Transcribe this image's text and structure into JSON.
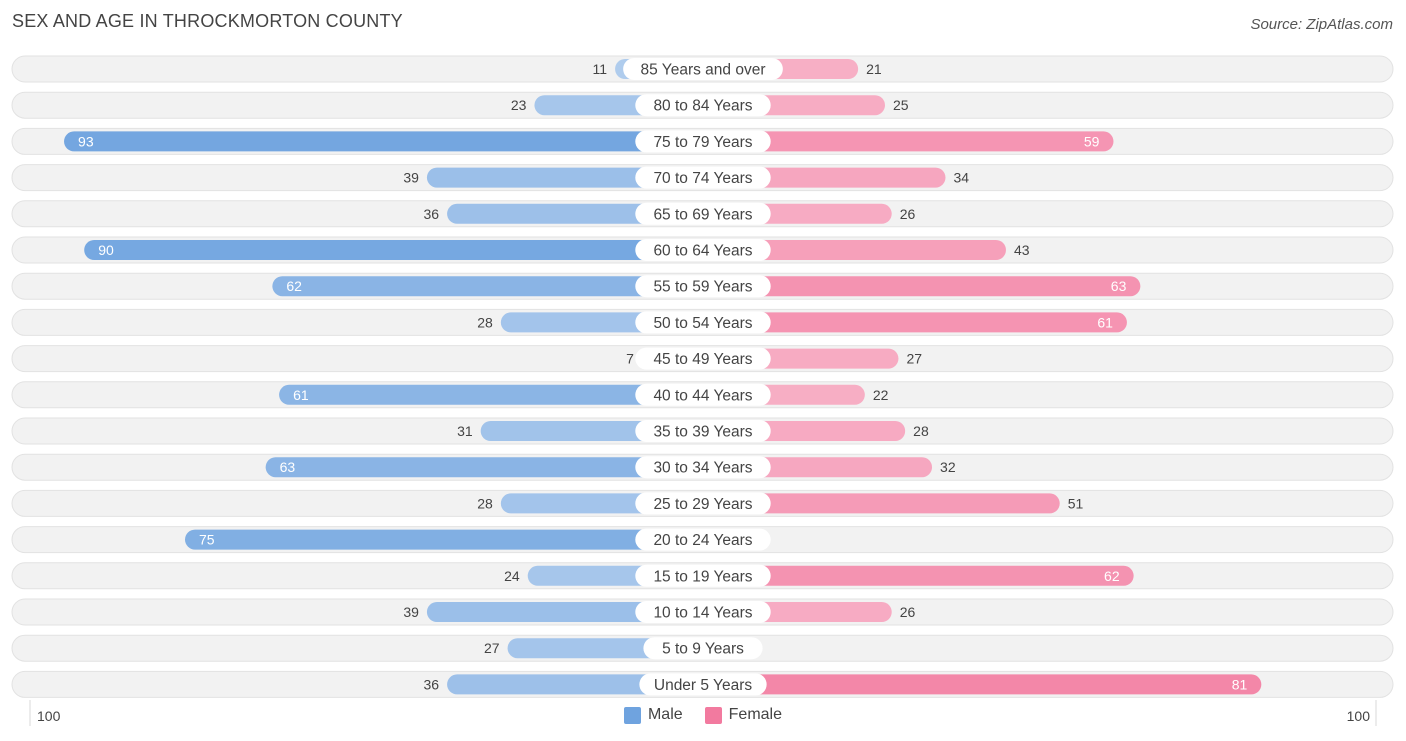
{
  "chart_data": {
    "type": "bar",
    "title": "SEX AND AGE IN THROCKMORTON COUNTY",
    "source": "Source: ZipAtlas.com",
    "orientation": "horizontal-diverging",
    "xlim": [
      0,
      100
    ],
    "axis_left_label": "100",
    "axis_right_label": "100",
    "categories": [
      "85 Years and over",
      "80 to 84 Years",
      "75 to 79 Years",
      "70 to 74 Years",
      "65 to 69 Years",
      "60 to 64 Years",
      "55 to 59 Years",
      "50 to 54 Years",
      "45 to 49 Years",
      "40 to 44 Years",
      "35 to 39 Years",
      "30 to 34 Years",
      "25 to 29 Years",
      "20 to 24 Years",
      "15 to 19 Years",
      "10 to 14 Years",
      "5 to 9 Years",
      "Under 5 Years"
    ],
    "series": [
      {
        "name": "Male",
        "color": "#6fa3df",
        "values": [
          11,
          23,
          93,
          39,
          36,
          90,
          62,
          28,
          7,
          61,
          31,
          63,
          28,
          75,
          24,
          39,
          27,
          36
        ]
      },
      {
        "name": "Female",
        "color": "#f27a9f",
        "values": [
          21,
          25,
          59,
          34,
          26,
          43,
          63,
          61,
          27,
          22,
          28,
          32,
          51,
          5,
          62,
          26,
          0,
          81
        ]
      }
    ],
    "legend": [
      "Male",
      "Female"
    ],
    "legend_position": "bottom-center"
  }
}
